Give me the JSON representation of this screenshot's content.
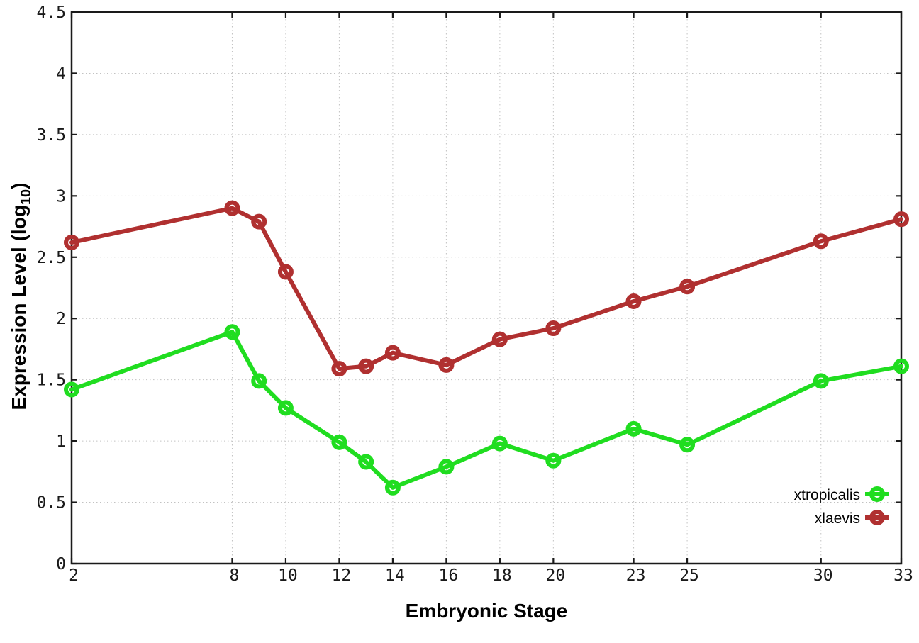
{
  "figure": {
    "background": "#ffffff",
    "axes": {
      "xlabel": "Embryonic Stage",
      "ylabel": {
        "prefix": "Expression Level (log",
        "sub": "10",
        "suffix": ")"
      }
    },
    "legend": {
      "position": "bottom-right",
      "entries": [
        {
          "label": "xtropicalis",
          "color": "#20dd20",
          "marker": "open-circle"
        },
        {
          "label": "xlaevis",
          "color": "#b03030",
          "marker": "open-circle"
        }
      ]
    },
    "colors": {
      "grid": "#c2c2c2",
      "border": "#1a1a1a",
      "tick_text": "#1a1a1a",
      "series_green": "#20dd20",
      "series_red": "#b03030"
    }
  },
  "chart_data": {
    "type": "line",
    "title": "",
    "xlabel": "Embryonic Stage",
    "ylabel": "Expression Level (log10)",
    "x": [
      2,
      8,
      9,
      10,
      12,
      13,
      14,
      16,
      18,
      20,
      23,
      25,
      30,
      33
    ],
    "series": [
      {
        "name": "xtropicalis",
        "color": "#20dd20",
        "values": [
          1.42,
          1.89,
          1.49,
          1.27,
          0.99,
          0.83,
          0.62,
          0.79,
          0.98,
          0.84,
          1.1,
          0.97,
          1.49,
          1.61
        ]
      },
      {
        "name": "xlaevis",
        "color": "#b03030",
        "values": [
          2.62,
          2.9,
          2.79,
          2.38,
          1.59,
          1.61,
          1.72,
          1.62,
          1.83,
          1.92,
          2.14,
          2.26,
          2.63,
          2.81
        ]
      }
    ],
    "xlim": [
      2,
      33
    ],
    "ylim": [
      0,
      4.5
    ],
    "xticks": {
      "values": [
        2,
        8,
        10,
        12,
        14,
        16,
        18,
        20,
        23,
        25,
        30,
        33
      ],
      "labels": [
        "2",
        "8",
        "10",
        "12",
        "14",
        "16",
        "18",
        "20",
        "23",
        "25",
        "30",
        "33"
      ]
    },
    "yticks": {
      "values": [
        0,
        0.5,
        1,
        1.5,
        2,
        2.5,
        3,
        3.5,
        4,
        4.5
      ],
      "labels": [
        "0",
        "0.5",
        "1",
        "1.5",
        "2",
        "2.5",
        "3",
        "3.5",
        "4",
        "4.5"
      ]
    },
    "grid": true,
    "legend_position": "bottom-right",
    "marker": "open-circle"
  }
}
